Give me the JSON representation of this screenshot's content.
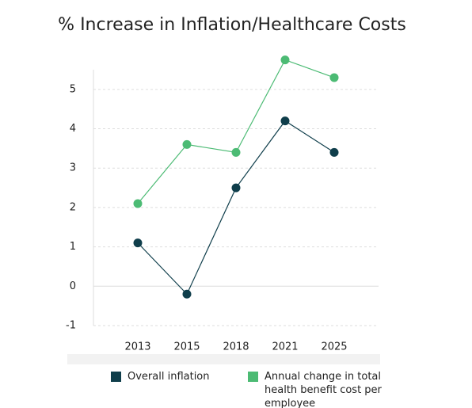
{
  "chart_data": {
    "type": "line",
    "title": "% Increase in Inflation/Healthcare Costs",
    "categories": [
      "2013",
      "2015",
      "2018",
      "2021",
      "2025"
    ],
    "series": [
      {
        "name": "Overall inflation",
        "color": "#0f3e4b",
        "values": [
          1.1,
          -0.2,
          2.5,
          4.2,
          3.4
        ]
      },
      {
        "name": "Annual change in total health benefit cost per employee",
        "color": "#4cbb74",
        "values": [
          2.1,
          3.6,
          3.4,
          5.75,
          5.3
        ]
      }
    ],
    "ylim": [
      -1,
      5.5
    ],
    "yticks": [
      -1,
      0,
      1,
      2,
      3,
      4,
      5
    ],
    "grid": true,
    "legend": "bottom"
  }
}
